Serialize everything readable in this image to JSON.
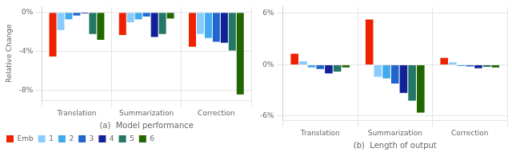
{
  "chart_data": [
    {
      "type": "bar",
      "xlabel": "(a)  Model performance",
      "ylabel": "Relative Change",
      "categories": [
        "Translation",
        "Summarization",
        "Correction"
      ],
      "series": [
        {
          "name": "Emb",
          "color": "#ee2200",
          "values": [
            -4.5,
            -2.3,
            -3.5
          ]
        },
        {
          "name": "1",
          "color": "#88ccff",
          "values": [
            -1.8,
            -1.0,
            -2.2
          ]
        },
        {
          "name": "2",
          "color": "#44aaee",
          "values": [
            -0.7,
            -0.7,
            -2.6
          ]
        },
        {
          "name": "3",
          "color": "#2266cc",
          "values": [
            -0.3,
            -0.4,
            -3.0
          ]
        },
        {
          "name": "4",
          "color": "#112299",
          "values": [
            -0.1,
            -2.5,
            -3.1
          ]
        },
        {
          "name": "5",
          "color": "#227766",
          "values": [
            -2.2,
            -2.2,
            -3.9
          ]
        },
        {
          "name": "6",
          "color": "#226600",
          "values": [
            -2.8,
            -0.6,
            -8.4
          ]
        }
      ],
      "ylim": [
        -9.0,
        0.6
      ],
      "yticks": [
        {
          "value": 0,
          "label": "0%"
        },
        {
          "value": -4,
          "label": "-4%"
        },
        {
          "value": -8,
          "label": "-8%"
        }
      ],
      "grid": true,
      "legend": "lower left"
    },
    {
      "type": "bar",
      "xlabel": "(b)  Length of output",
      "categories": [
        "Translation",
        "Summarization",
        "Correction"
      ],
      "series": [
        {
          "name": "Emb",
          "color": "#ee2200",
          "values": [
            1.3,
            5.3,
            0.8
          ]
        },
        {
          "name": "1",
          "color": "#88ccff",
          "values": [
            0.4,
            -1.4,
            0.3
          ]
        },
        {
          "name": "2",
          "color": "#44aaee",
          "values": [
            -0.3,
            -1.6,
            -0.15
          ]
        },
        {
          "name": "3",
          "color": "#2266cc",
          "values": [
            -0.5,
            -2.2,
            -0.2
          ]
        },
        {
          "name": "4",
          "color": "#112299",
          "values": [
            -1.0,
            -3.3,
            -0.4
          ]
        },
        {
          "name": "5",
          "color": "#227766",
          "values": [
            -0.8,
            -4.2,
            -0.25
          ]
        },
        {
          "name": "6",
          "color": "#226600",
          "values": [
            -0.3,
            -5.6,
            -0.3
          ]
        }
      ],
      "ylim": [
        -6.5,
        6.8
      ],
      "yticks": [
        {
          "value": 6,
          "label": "6%"
        },
        {
          "value": 0,
          "label": "0%"
        },
        {
          "value": -6,
          "label": "-6%"
        }
      ],
      "grid": true
    }
  ]
}
